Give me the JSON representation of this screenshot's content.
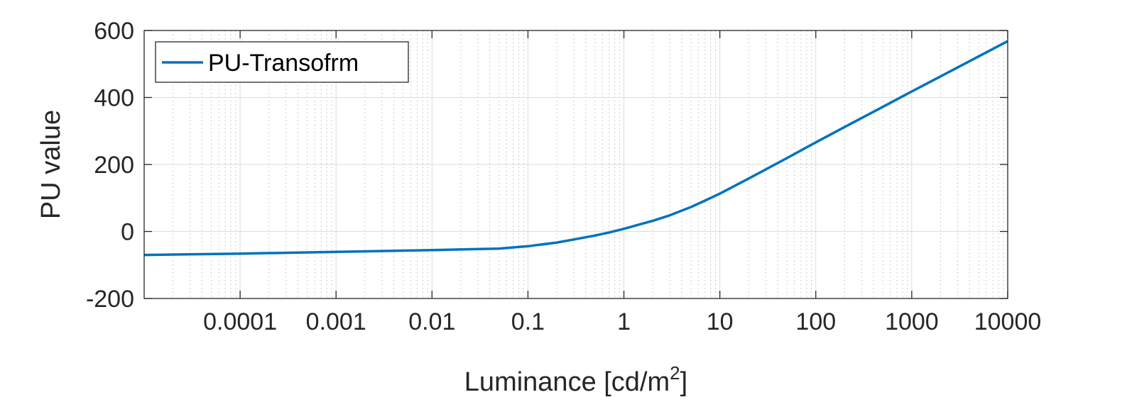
{
  "chart_data": {
    "type": "line",
    "xscale": "log",
    "xlim": [
      1e-05,
      10000
    ],
    "ylim": [
      -200,
      600
    ],
    "xticks": [
      0.0001,
      0.001,
      0.01,
      0.1,
      1,
      10,
      100,
      1000,
      10000
    ],
    "xtick_labels": [
      "0.0001",
      "0.001",
      "0.01",
      "0.1",
      "1",
      "10",
      "100",
      "1000",
      "10000"
    ],
    "yticks": [
      -200,
      0,
      200,
      400,
      600
    ],
    "ytick_labels": [
      "-200",
      "0",
      "200",
      "400",
      "600"
    ],
    "xlabel": "Luminance [cd/m",
    "xlabel_superscript": "2",
    "xlabel_suffix": "]",
    "ylabel": "PU value",
    "grid": true,
    "minor_grid": true,
    "legend": {
      "placement": "top-left",
      "entries": [
        "PU-Transofrm"
      ]
    },
    "series": [
      {
        "name": "PU-Transofrm",
        "color": "#0072BD",
        "x": [
          1e-05,
          0.0001,
          0.001,
          0.01,
          0.05,
          0.1,
          0.2,
          0.3,
          0.5,
          0.7,
          1,
          1.5,
          2,
          3,
          5,
          7,
          10,
          20,
          50,
          100,
          200,
          500,
          1000,
          2000,
          5000,
          10000
        ],
        "y": [
          -70,
          -66,
          -61,
          -55.5,
          -51,
          -44,
          -33,
          -24,
          -12,
          -3,
          8,
          22,
          32,
          48,
          73,
          92,
          113,
          158,
          219,
          266,
          312,
          372,
          418,
          463,
          523,
          568
        ]
      }
    ]
  }
}
